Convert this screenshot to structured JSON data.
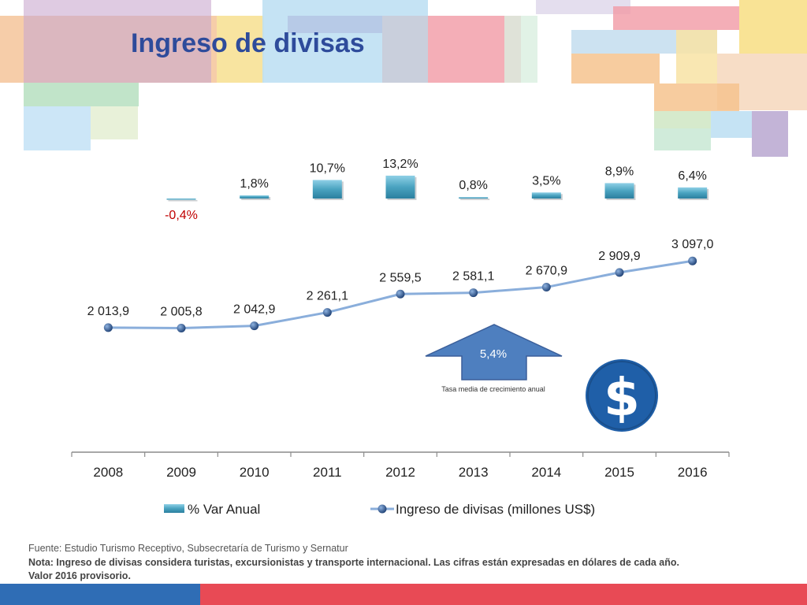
{
  "title": "Ingreso de divisas",
  "chart_data": {
    "type": "bar",
    "categories": [
      "2008",
      "2009",
      "2010",
      "2011",
      "2012",
      "2013",
      "2014",
      "2015",
      "2016"
    ],
    "series": [
      {
        "name": "% Var Anual",
        "type": "bar",
        "values": [
          null,
          -0.4,
          1.8,
          10.7,
          13.2,
          0.8,
          3.5,
          8.9,
          6.4
        ],
        "labels": [
          "",
          "-0,4%",
          "1,8%",
          "10,7%",
          "13,2%",
          "0,8%",
          "3,5%",
          "8,9%",
          "6,4%"
        ],
        "color": "#4aa3c0"
      },
      {
        "name": "Ingreso de divisas (millones US$)",
        "type": "line",
        "values": [
          2013.9,
          2005.8,
          2042.9,
          2261.1,
          2559.5,
          2581.1,
          2670.9,
          2909.9,
          3097.0
        ],
        "labels": [
          "2 013,9",
          "2 005,8",
          "2 042,9",
          "2 261,1",
          "2 559,5",
          "2 581,1",
          "2 670,9",
          "2 909,9",
          "3 097,0"
        ],
        "color": "#8aaedb"
      }
    ],
    "negative_label_color": "#c00000",
    "legend_position": "bottom"
  },
  "cagr": {
    "value": "5,4%",
    "label": "Tasa media de crecimiento anual",
    "color": "#4e7fbf"
  },
  "dollar_icon": {
    "icon": "dollar-icon",
    "color": "#1f5fa8"
  },
  "footer": {
    "source": "Fuente: Estudio Turismo Receptivo, Subsecretaría de Turismo y Sernatur",
    "note": "Nota: Ingreso de divisas considera turistas, excursionistas y transporte internacional. Las cifras están expresadas en dólares de cada año.",
    "provisional": "Valor 2016 provisorio."
  },
  "colors": {
    "title": "#2e4b9b",
    "bar_blue": "#2f6db5",
    "bar_red": "#e84a55"
  }
}
